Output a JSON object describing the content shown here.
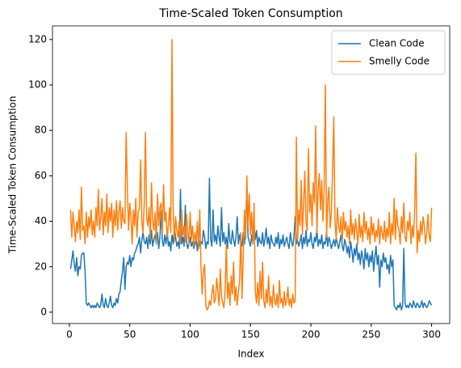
{
  "chart_data": {
    "type": "line",
    "title": "Time-Scaled Token Consumption",
    "xlabel": "Index",
    "ylabel": "Time-Scaled Token Consumption",
    "x": [
      1,
      2,
      3,
      4,
      5,
      6,
      7,
      8,
      9,
      10,
      11,
      12,
      13,
      14,
      15,
      16,
      17,
      18,
      19,
      20,
      21,
      22,
      23,
      24,
      25,
      26,
      27,
      28,
      29,
      30,
      31,
      32,
      33,
      34,
      35,
      36,
      37,
      38,
      39,
      40,
      41,
      42,
      43,
      44,
      45,
      46,
      47,
      48,
      49,
      50,
      51,
      52,
      53,
      54,
      55,
      56,
      57,
      58,
      59,
      60,
      61,
      62,
      63,
      64,
      65,
      66,
      67,
      68,
      69,
      70,
      71,
      72,
      73,
      74,
      75,
      76,
      77,
      78,
      79,
      80,
      81,
      82,
      83,
      84,
      85,
      86,
      87,
      88,
      89,
      90,
      91,
      92,
      93,
      94,
      95,
      96,
      97,
      98,
      99,
      100,
      101,
      102,
      103,
      104,
      105,
      106,
      107,
      108,
      109,
      110,
      111,
      112,
      113,
      114,
      115,
      116,
      117,
      118,
      119,
      120,
      121,
      122,
      123,
      124,
      125,
      126,
      127,
      128,
      129,
      130,
      131,
      132,
      133,
      134,
      135,
      136,
      137,
      138,
      139,
      140,
      141,
      142,
      143,
      144,
      145,
      146,
      147,
      148,
      149,
      150,
      151,
      152,
      153,
      154,
      155,
      156,
      157,
      158,
      159,
      160,
      161,
      162,
      163,
      164,
      165,
      166,
      167,
      168,
      169,
      170,
      171,
      172,
      173,
      174,
      175,
      176,
      177,
      178,
      179,
      180,
      181,
      182,
      183,
      184,
      185,
      186,
      187,
      188,
      189,
      190,
      191,
      192,
      193,
      194,
      195,
      196,
      197,
      198,
      199,
      200,
      201,
      202,
      203,
      204,
      205,
      206,
      207,
      208,
      209,
      210,
      211,
      212,
      213,
      214,
      215,
      216,
      217,
      218,
      219,
      220,
      221,
      222,
      223,
      224,
      225,
      226,
      227,
      228,
      229,
      230,
      231,
      232,
      233,
      234,
      235,
      236,
      237,
      238,
      239,
      240,
      241,
      242,
      243,
      244,
      245,
      246,
      247,
      248,
      249,
      250,
      251,
      252,
      253,
      254,
      255,
      256,
      257,
      258,
      259,
      260,
      261,
      262,
      263,
      264,
      265,
      266,
      267,
      268,
      269,
      270,
      271,
      272,
      273,
      274,
      275,
      276,
      277,
      278,
      279,
      280,
      281,
      282,
      283,
      284,
      285,
      286,
      287,
      288,
      289,
      290,
      291,
      292,
      293,
      294,
      295,
      296,
      297,
      298,
      299,
      300
    ],
    "series": [
      {
        "name": "Clean Code",
        "color": "#1f77b4",
        "values": [
          19,
          23,
          27,
          21,
          18,
          24,
          16,
          20,
          19,
          25,
          26,
          26,
          18,
          4,
          3,
          4,
          3,
          2,
          3,
          2,
          3,
          2,
          4,
          3,
          2,
          3,
          8,
          3,
          2,
          6,
          3,
          2,
          4,
          7,
          3,
          2,
          4,
          3,
          6,
          4,
          8,
          9,
          14,
          18,
          24,
          10,
          20,
          22,
          21,
          25,
          20,
          24,
          23,
          26,
          27,
          29,
          30,
          33,
          26,
          32,
          35,
          31,
          30,
          33,
          28,
          34,
          30,
          36,
          29,
          32,
          34,
          30,
          35,
          28,
          33,
          45,
          31,
          29,
          34,
          30,
          36,
          29,
          31,
          27,
          34,
          30,
          38,
          33,
          29,
          31,
          28,
          54,
          30,
          33,
          29,
          47,
          31,
          28,
          30,
          33,
          29,
          31,
          28,
          30,
          32,
          27,
          33,
          29,
          31,
          30,
          36,
          33,
          28,
          31,
          30,
          59,
          32,
          29,
          45,
          31,
          34,
          30,
          38,
          33,
          29,
          46,
          31,
          35,
          30,
          33,
          28,
          39,
          31,
          30,
          36,
          32,
          29,
          33,
          42,
          30,
          34,
          31,
          29,
          35,
          30,
          37,
          55,
          33,
          31,
          29,
          34,
          30,
          38,
          32,
          36,
          29,
          33,
          31,
          30,
          35,
          29,
          32,
          37,
          30,
          33,
          28,
          34,
          31,
          30,
          29,
          33,
          30,
          35,
          28,
          32,
          30,
          34,
          29,
          31,
          33,
          30,
          28,
          35,
          31,
          29,
          33,
          42,
          30,
          32,
          29,
          31,
          34,
          28,
          33,
          30,
          36,
          29,
          32,
          31,
          35,
          30,
          28,
          33,
          31,
          36,
          29,
          32,
          30,
          34,
          28,
          31,
          30,
          35,
          29,
          33,
          31,
          28,
          30,
          32,
          29,
          33,
          30,
          28,
          31,
          34,
          29,
          27,
          32,
          30,
          26,
          29,
          24,
          31,
          27,
          22,
          28,
          25,
          30,
          23,
          26,
          21,
          27,
          24,
          19,
          28,
          23,
          26,
          20,
          25,
          22,
          27,
          18,
          24,
          29,
          21,
          25,
          11,
          23,
          20,
          26,
          22,
          24,
          19,
          21,
          17,
          25,
          20,
          23,
          3,
          2,
          1,
          3,
          2,
          4,
          1,
          3,
          28,
          4,
          2,
          3,
          2,
          4,
          3,
          2,
          5,
          3,
          2,
          4,
          3,
          2,
          3,
          5,
          2,
          4,
          3,
          2,
          3,
          5,
          4,
          3
        ]
      },
      {
        "name": "Smelly Code",
        "color": "#ff7f0e",
        "values": [
          45,
          33,
          44,
          38,
          31,
          40,
          35,
          45,
          32,
          55,
          36,
          38,
          30,
          44,
          33,
          42,
          37,
          45,
          34,
          40,
          33,
          46,
          38,
          54,
          36,
          42,
          50,
          34,
          44,
          38,
          52,
          35,
          46,
          40,
          48,
          33,
          45,
          38,
          49,
          36,
          44,
          49,
          37,
          46,
          40,
          39,
          79,
          55,
          36,
          48,
          42,
          30,
          45,
          38,
          50,
          33,
          44,
          46,
          67,
          40,
          35,
          48,
          79,
          42,
          38,
          46,
          32,
          57,
          40,
          36,
          44,
          30,
          52,
          38,
          46,
          48,
          35,
          56,
          40,
          44,
          33,
          38,
          46,
          35,
          120,
          44,
          31,
          42,
          36,
          33,
          40,
          30,
          45,
          34,
          38,
          31,
          43,
          36,
          30,
          44,
          32,
          38,
          29,
          35,
          31,
          40,
          28,
          45,
          20,
          8,
          18,
          21,
          3,
          1,
          2,
          5,
          3,
          8,
          12,
          4,
          6,
          15,
          9,
          3,
          19,
          7,
          4,
          2,
          10,
          30,
          6,
          13,
          3,
          16,
          8,
          22,
          5,
          11,
          3,
          9,
          14,
          35,
          6,
          25,
          45,
          32,
          60,
          38,
          52,
          34,
          44,
          30,
          48,
          9,
          4,
          13,
          3,
          18,
          6,
          22,
          5,
          2,
          10,
          4,
          16,
          3,
          7,
          2,
          12,
          5,
          3,
          8,
          2,
          14,
          4,
          6,
          2,
          9,
          3,
          5,
          11,
          3,
          6,
          2,
          8,
          4,
          5,
          77,
          31,
          45,
          38,
          58,
          34,
          48,
          62,
          40,
          36,
          72,
          44,
          52,
          38,
          57,
          48,
          82,
          35,
          54,
          61,
          45,
          58,
          40,
          54,
          100,
          33,
          49,
          55,
          37,
          44,
          62,
          86,
          40,
          32,
          46,
          38,
          35,
          42,
          31,
          44,
          36,
          40,
          33,
          38,
          30,
          45,
          34,
          39,
          32,
          41,
          36,
          30,
          43,
          33,
          38,
          31,
          44,
          35,
          40,
          32,
          37,
          30,
          42,
          34,
          39,
          31,
          36,
          33,
          41,
          30,
          38,
          35,
          32,
          40,
          31,
          37,
          33,
          44,
          30,
          39,
          34,
          50,
          32,
          45,
          38,
          36,
          30,
          42,
          35,
          48,
          33,
          31,
          40,
          36,
          44,
          30,
          38,
          33,
          45,
          70,
          26,
          36,
          31,
          40,
          34,
          42,
          38,
          30,
          35,
          43,
          33,
          31,
          46
        ]
      }
    ],
    "xlim": [
      -14,
      315
    ],
    "xticks": [
      0,
      50,
      100,
      150,
      200,
      250,
      300
    ],
    "ylim": [
      -5,
      126
    ],
    "yticks": [
      0,
      20,
      40,
      60,
      80,
      100,
      120
    ],
    "legend": "upper right"
  }
}
